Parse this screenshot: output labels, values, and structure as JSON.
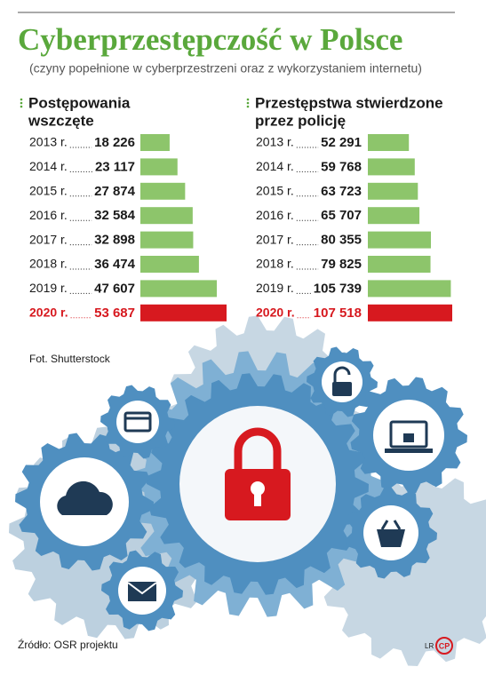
{
  "title": "Cyberprzestępczość w Polsce",
  "subtitle": "(czyny popełnione w cyberprzestrzeni oraz z wykorzystaniem internetu)",
  "photo_credit": "Fot. Shutterstock",
  "source": "Źródło: OSR projektu",
  "author_initials": "LR",
  "logo": "CP",
  "chart_data": [
    {
      "type": "bar",
      "title_lines": [
        "Postępowania",
        "wszczęte"
      ],
      "categories": [
        "2013 r.",
        "2014 r.",
        "2015 r.",
        "2016 r.",
        "2017 r.",
        "2018 r.",
        "2019 r.",
        "2020 r."
      ],
      "values": [
        18226,
        23117,
        27874,
        32584,
        32898,
        36474,
        47607,
        53687
      ],
      "value_labels": [
        "18 226",
        "23 117",
        "27 874",
        "32 584",
        "32 898",
        "36 474",
        "47 607",
        "53 687"
      ],
      "colors": [
        "#8dc56b",
        "#8dc56b",
        "#8dc56b",
        "#8dc56b",
        "#8dc56b",
        "#8dc56b",
        "#8dc56b",
        "#d7191f"
      ]
    },
    {
      "type": "bar",
      "title_lines": [
        "Przestępstwa stwierdzone",
        "przez policję"
      ],
      "categories": [
        "2013 r.",
        "2014 r.",
        "2015 r.",
        "2016 r.",
        "2017 r.",
        "2018 r.",
        "2019 r.",
        "2020 r."
      ],
      "values": [
        52291,
        59768,
        63723,
        65707,
        80355,
        79825,
        105739,
        107518
      ],
      "value_labels": [
        "52 291",
        "59 768",
        "63 723",
        "65 707",
        "80 355",
        "79 825",
        "105 739",
        "107 518"
      ],
      "colors": [
        "#8dc56b",
        "#8dc56b",
        "#8dc56b",
        "#8dc56b",
        "#8dc56b",
        "#8dc56b",
        "#8dc56b",
        "#d7191f"
      ]
    }
  ]
}
